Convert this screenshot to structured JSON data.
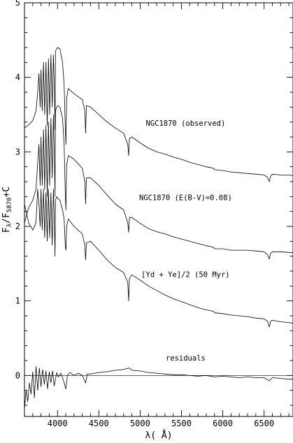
{
  "chart_data": {
    "type": "line",
    "xlabel": "λ( Å)",
    "ylabel_parts": {
      "prefix": "F",
      "lambda": "λ",
      "slash": "/F",
      "subscript": "5870",
      "suffix": "+C"
    },
    "xlim": [
      3600,
      6850
    ],
    "ylim": [
      -0.55,
      5.0
    ],
    "xticks": [
      4000,
      4500,
      5000,
      5500,
      6000,
      6500
    ],
    "xtick_labels": [
      "4000",
      "4500",
      "5000",
      "5500",
      "6000",
      "6500"
    ],
    "yticks": [
      0,
      1,
      2,
      3,
      4,
      5
    ],
    "ytick_labels": [
      "0",
      "1",
      "2",
      "3",
      "4",
      "5"
    ],
    "minor_xtick_step": 100,
    "minor_ytick_step": 0.2,
    "zero_line": 0,
    "annotations": [
      {
        "text": "NGC1870 (observed)",
        "x": 5550,
        "y": 3.35
      },
      {
        "text": "NGC1870 (E(B-V)=0.08)",
        "x": 5550,
        "y": 2.35
      },
      {
        "text": "[Yd + Ye]/2 (50 Myr)",
        "x": 5550,
        "y": 1.32
      },
      {
        "text": "residuals",
        "x": 5550,
        "y": 0.2
      }
    ],
    "series": [
      {
        "x": [
          3600,
          3650,
          3700,
          3740,
          3760,
          3775,
          3790,
          3800,
          3815,
          3830,
          3845,
          3860,
          3875,
          3890,
          3905,
          3920,
          3935,
          3950,
          3965,
          3970,
          3975,
          3990,
          4000,
          4030,
          4060,
          4080,
          4095,
          4102,
          4110,
          4130,
          4200,
          4300,
          4330,
          4340,
          4350,
          4400,
          4500,
          4600,
          4700,
          4800,
          4850,
          4861,
          4870,
          4900,
          5000,
          5100,
          5200,
          5300,
          5400,
          5500,
          5600,
          5700,
          5800,
          5890,
          5900,
          6000,
          6100,
          6200,
          6300,
          6400,
          6500,
          6540,
          6563,
          6580,
          6600,
          6700,
          6800,
          6850
        ],
        "y": [
          3.32,
          3.36,
          3.42,
          3.55,
          3.8,
          4.05,
          3.6,
          4.1,
          3.55,
          4.2,
          3.5,
          4.2,
          3.35,
          4.25,
          3.5,
          4.3,
          3.6,
          4.3,
          3.7,
          3.3,
          4.35,
          4.38,
          4.4,
          4.38,
          4.2,
          3.9,
          3.3,
          3.1,
          3.72,
          3.85,
          3.78,
          3.7,
          3.55,
          3.25,
          3.62,
          3.6,
          3.5,
          3.4,
          3.32,
          3.25,
          3.1,
          2.95,
          3.18,
          3.2,
          3.12,
          3.05,
          3.0,
          2.97,
          2.93,
          2.9,
          2.86,
          2.83,
          2.8,
          2.78,
          2.76,
          2.75,
          2.73,
          2.72,
          2.71,
          2.7,
          2.69,
          2.66,
          2.6,
          2.68,
          2.7,
          2.69,
          2.69,
          2.68
        ]
      },
      {
        "x": [
          3600,
          3650,
          3700,
          3740,
          3760,
          3775,
          3790,
          3800,
          3815,
          3830,
          3845,
          3860,
          3875,
          3890,
          3905,
          3920,
          3935,
          3950,
          3965,
          3970,
          3975,
          3990,
          4000,
          4030,
          4060,
          4080,
          4095,
          4102,
          4110,
          4130,
          4200,
          4300,
          4330,
          4340,
          4350,
          4400,
          4500,
          4600,
          4700,
          4800,
          4850,
          4861,
          4870,
          4900,
          5000,
          5100,
          5200,
          5300,
          5400,
          5500,
          5600,
          5700,
          5800,
          5890,
          5900,
          6000,
          6100,
          6200,
          6300,
          6400,
          6500,
          6540,
          6563,
          6580,
          6600,
          6700,
          6800,
          6850
        ],
        "y": [
          2.05,
          2.25,
          2.35,
          2.5,
          2.85,
          3.1,
          2.55,
          3.2,
          2.55,
          3.3,
          2.5,
          3.35,
          2.4,
          3.4,
          2.55,
          3.45,
          2.65,
          3.5,
          2.75,
          2.4,
          3.55,
          3.6,
          3.62,
          3.6,
          3.45,
          3.1,
          2.4,
          2.22,
          2.82,
          2.95,
          2.9,
          2.78,
          2.6,
          2.3,
          2.65,
          2.65,
          2.55,
          2.42,
          2.3,
          2.22,
          2.05,
          1.92,
          2.12,
          2.12,
          2.04,
          1.97,
          1.93,
          1.9,
          1.86,
          1.83,
          1.8,
          1.77,
          1.74,
          1.72,
          1.7,
          1.7,
          1.68,
          1.68,
          1.68,
          1.67,
          1.66,
          1.62,
          1.56,
          1.64,
          1.66,
          1.66,
          1.65,
          1.65
        ]
      },
      {
        "x": [
          3600,
          3650,
          3700,
          3740,
          3760,
          3775,
          3790,
          3800,
          3815,
          3830,
          3845,
          3860,
          3875,
          3890,
          3905,
          3920,
          3935,
          3950,
          3965,
          3970,
          3975,
          3990,
          4000,
          4030,
          4060,
          4080,
          4095,
          4102,
          4110,
          4130,
          4200,
          4300,
          4330,
          4340,
          4350,
          4400,
          4500,
          4600,
          4700,
          4800,
          4850,
          4861,
          4870,
          4900,
          5000,
          5100,
          5200,
          5300,
          5400,
          5500,
          5600,
          5700,
          5800,
          5890,
          5900,
          6000,
          6100,
          6200,
          6300,
          6400,
          6500,
          6540,
          6563,
          6580,
          6600,
          6700,
          6800,
          6850
        ],
        "y": [
          2.3,
          2.05,
          1.95,
          2.05,
          2.5,
          2.3,
          2.0,
          2.5,
          1.95,
          2.5,
          1.85,
          2.45,
          1.8,
          2.5,
          1.85,
          2.45,
          1.75,
          2.5,
          1.9,
          1.6,
          2.35,
          2.4,
          2.38,
          2.35,
          2.22,
          2.1,
          1.72,
          1.68,
          2.0,
          2.1,
          2.0,
          1.9,
          1.75,
          1.55,
          1.78,
          1.8,
          1.68,
          1.55,
          1.45,
          1.38,
          1.25,
          1.0,
          1.3,
          1.35,
          1.28,
          1.2,
          1.14,
          1.08,
          1.03,
          0.99,
          0.95,
          0.91,
          0.88,
          0.86,
          0.84,
          0.83,
          0.81,
          0.8,
          0.79,
          0.77,
          0.76,
          0.73,
          0.65,
          0.73,
          0.74,
          0.72,
          0.71,
          0.7
        ]
      },
      {
        "x": [
          3600,
          3620,
          3640,
          3660,
          3680,
          3700,
          3720,
          3740,
          3760,
          3780,
          3800,
          3820,
          3840,
          3860,
          3880,
          3900,
          3920,
          3940,
          3960,
          3975,
          3990,
          4010,
          4040,
          4070,
          4101,
          4120,
          4150,
          4200,
          4250,
          4300,
          4340,
          4360,
          4400,
          4500,
          4600,
          4700,
          4800,
          4861,
          4900,
          5000,
          5100,
          5200,
          5300,
          5400,
          5500,
          5600,
          5700,
          5800,
          5900,
          6000,
          6100,
          6200,
          6300,
          6400,
          6500,
          6563,
          6600,
          6700,
          6800,
          6850
        ],
        "y": [
          -0.45,
          -0.2,
          -0.35,
          -0.1,
          -0.25,
          0.05,
          -0.3,
          0.12,
          -0.2,
          0.1,
          -0.15,
          0.08,
          -0.12,
          0.06,
          -0.18,
          0.05,
          -0.1,
          0.06,
          -0.14,
          -0.05,
          0.04,
          -0.02,
          0.03,
          -0.06,
          -0.18,
          0.0,
          0.04,
          0.0,
          0.03,
          0.0,
          -0.1,
          0.02,
          0.02,
          0.04,
          0.05,
          0.07,
          0.08,
          0.1,
          0.07,
          0.06,
          0.04,
          0.03,
          0.02,
          0.01,
          0.01,
          0.0,
          -0.01,
          0.0,
          -0.02,
          -0.01,
          -0.02,
          -0.03,
          -0.02,
          -0.03,
          -0.03,
          -0.07,
          -0.03,
          -0.04,
          -0.05,
          -0.05
        ]
      }
    ]
  }
}
